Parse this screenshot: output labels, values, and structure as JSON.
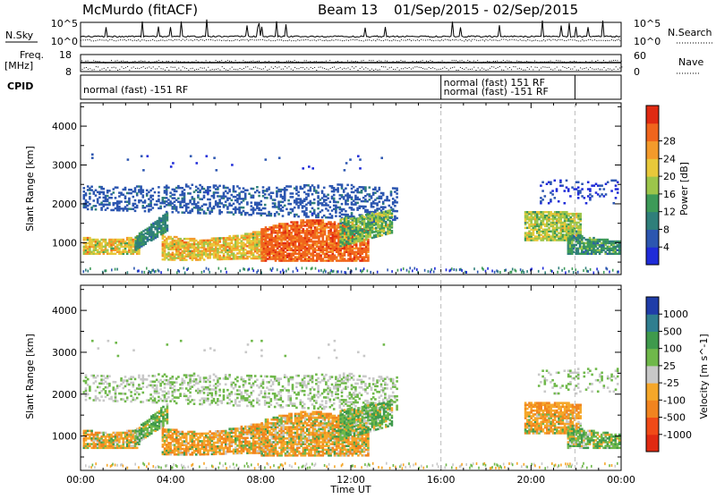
{
  "header": {
    "station": "McMurdo (fitACF)",
    "beam": "Beam 13",
    "date_range": "01/Sep/2015 - 02/Sep/2015"
  },
  "colors": {
    "power_scale": [
      "#1f2bd8",
      "#2c56b0",
      "#2f7f7a",
      "#3d9a58",
      "#9cc54a",
      "#e8c83a",
      "#f39a2b",
      "#f0651c",
      "#e02a12"
    ],
    "velocity_scale": [
      "#e02a12",
      "#f04a17",
      "#f1841f",
      "#f5a72a",
      "#c8c8c8",
      "#6fb84a",
      "#3f9a4c",
      "#2f7e8f",
      "#1f3da8"
    ]
  },
  "chart_data": [
    {
      "type": "line",
      "title": "N.Sky / N.Search",
      "left_label": "N.Sky",
      "right_label": "N.Search",
      "left_ticks": [
        "10^5",
        "10^0"
      ],
      "right_ticks": [
        "10^5",
        "10^0"
      ],
      "x": [
        "00:00",
        "04:00",
        "08:00",
        "12:00",
        "16:00",
        "20:00",
        "00:00"
      ]
    },
    {
      "type": "scatter",
      "title": "Freq / Nave",
      "left_label": "Freq.",
      "left_unit": "[MHz]",
      "right_label": "Nave",
      "left_ticks": [
        "18",
        "8"
      ],
      "right_ticks": [
        "60",
        "0"
      ],
      "x": [
        "00:00",
        "04:00",
        "08:00",
        "12:00",
        "16:00",
        "20:00",
        "00:00"
      ]
    },
    {
      "type": "table",
      "title": "CPID",
      "label": "CPID",
      "entries": [
        {
          "text": "normal (fast) -151 RF",
          "start_hour": 0,
          "end_hour": 16.0
        },
        {
          "text": "normal (fast) 151 RF",
          "start_hour": 16.0,
          "end_hour": 22.0
        },
        {
          "text": "normal (fast) -151 RF",
          "start_hour": 16.0,
          "end_hour": 22.0
        }
      ]
    },
    {
      "type": "heatmap",
      "ylabel": "Slant Range [km]",
      "ylim": [
        180,
        4600
      ],
      "yticks": [
        "1000",
        "2000",
        "3000",
        "4000"
      ],
      "yticks_values": [
        1000,
        2000,
        3000,
        4000
      ],
      "xlim": [
        0,
        24
      ],
      "x": [
        "00:00",
        "04:00",
        "08:00",
        "12:00",
        "16:00",
        "20:00",
        "00:00"
      ],
      "colorbar_label": "Power [dB]",
      "colorbar_ticks": [
        "4",
        "8",
        "12",
        "16",
        "20",
        "24",
        "28"
      ]
    },
    {
      "type": "heatmap",
      "ylabel": "Slant Range [km]",
      "xlabel": "Time UT",
      "ylim": [
        180,
        4600
      ],
      "yticks": [
        "1000",
        "2000",
        "3000",
        "4000"
      ],
      "yticks_values": [
        1000,
        2000,
        3000,
        4000
      ],
      "xlim": [
        0,
        24
      ],
      "x": [
        "00:00",
        "04:00",
        "08:00",
        "12:00",
        "16:00",
        "20:00",
        "00:00"
      ],
      "colorbar_label": "Velocity [m s^-1]",
      "colorbar_ticks": [
        "1000",
        "500",
        "100",
        "25",
        "-25",
        "-100",
        "-500",
        "-1000"
      ]
    }
  ]
}
